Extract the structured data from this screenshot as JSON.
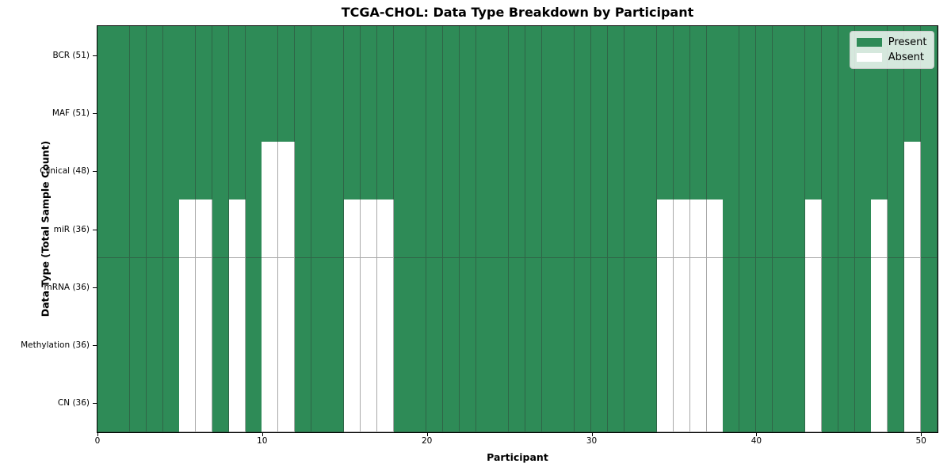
{
  "chart_data": {
    "type": "heatmap",
    "title": "TCGA-CHOL: Data Type Breakdown by Participant",
    "xlabel": "Participant",
    "ylabel": "Data Type (Total Sample Count)",
    "n_columns": 51,
    "x_ticks": [
      0,
      10,
      20,
      30,
      40,
      50
    ],
    "x_range": [
      0,
      51
    ],
    "grid": true,
    "rows": [
      {
        "label": "BCR (51)",
        "present_count": 51,
        "absent_columns": []
      },
      {
        "label": "MAF (51)",
        "present_count": 51,
        "absent_columns": []
      },
      {
        "label": "Clinical (48)",
        "present_count": 48,
        "absent_columns": [
          10,
          11,
          49
        ]
      },
      {
        "label": "miR (36)",
        "present_count": 36,
        "absent_columns": [
          5,
          6,
          8,
          10,
          11,
          15,
          16,
          17,
          34,
          35,
          36,
          37,
          43,
          47,
          49
        ]
      },
      {
        "label": "mRNA (36)",
        "present_count": 36,
        "absent_columns": [
          5,
          6,
          8,
          10,
          11,
          15,
          16,
          17,
          34,
          35,
          36,
          37,
          43,
          47,
          49
        ]
      },
      {
        "label": "Methylation (36)",
        "present_count": 36,
        "absent_columns": [
          5,
          6,
          8,
          10,
          11,
          15,
          16,
          17,
          34,
          35,
          36,
          37,
          43,
          47,
          49
        ]
      },
      {
        "label": "CN (36)",
        "present_count": 36,
        "absent_columns": [
          5,
          6,
          8,
          10,
          11,
          15,
          16,
          17,
          34,
          35,
          36,
          37,
          43,
          47,
          49
        ]
      }
    ],
    "legend": {
      "position": "upper right",
      "items": [
        {
          "label": "Present",
          "color": "#2e8b57"
        },
        {
          "label": "Absent",
          "color": "#ffffff"
        }
      ]
    },
    "colors": {
      "present": "#2e8b57",
      "absent": "#ffffff",
      "grid_line": "rgba(50,50,50,0.42)",
      "spine": "#000000"
    }
  }
}
